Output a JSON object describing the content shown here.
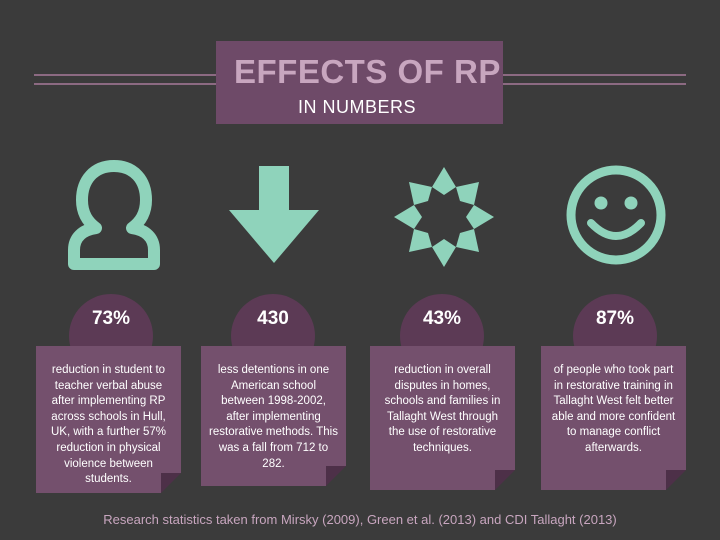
{
  "header": {
    "title": "EFFECTS OF RP",
    "subtitle": "IN NUMBERS"
  },
  "stats": [
    {
      "value": "73%",
      "icon": "person-icon",
      "description": "reduction in student to teacher verbal abuse after implementing RP across schools in Hull, UK, with a further 57% reduction in physical violence between students."
    },
    {
      "value": "430",
      "icon": "arrow-down-icon",
      "description": "less detentions in one American school between 1998-2002, after implementing restorative methods. This was a fall from 712 to 282."
    },
    {
      "value": "43%",
      "icon": "flower-icon",
      "description": "reduction in overall disputes in homes, schools and families in Tallaght West through the use of restorative techniques."
    },
    {
      "value": "87%",
      "icon": "smiley-icon",
      "description": "of people who took part in restorative training in Tallaght West felt better able and more confident to manage conflict afterwards."
    }
  ],
  "footer": {
    "text": "Research statistics taken from Mirsky (2009), Green et al. (2013) and CDI Tallaght (2013)"
  },
  "colors": {
    "background": "#3b3b3b",
    "accent_purple": "#6e4a68",
    "accent_mint": "#8fd3bb",
    "title_pink": "#c8a6bf"
  }
}
